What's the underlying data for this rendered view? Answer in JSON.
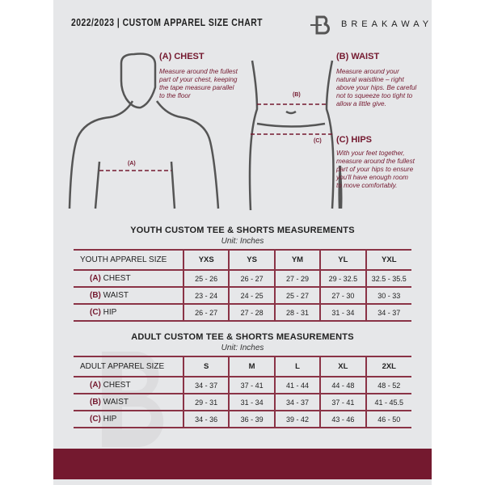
{
  "header": {
    "title": "2022/2023 | CUSTOM APPAREL SIZE CHART",
    "brand": "BREAKAWAY"
  },
  "guides": {
    "chest": {
      "title": "(A) CHEST",
      "text": "Measure around the fullest part of your chest, keeping the tape measure parallel to the floor",
      "marker": "(A)"
    },
    "waist": {
      "title": "(B) WAIST",
      "text": "Measure around your natural waistline – right above your hips. Be careful not to squeeze too tight to allow a little give.",
      "marker": "(B)"
    },
    "hips": {
      "title": "(C) HIPS",
      "text": "With your feet together, measure around the fullest part of your hips to ensure you'll have enough room to move comfortably.",
      "marker": "(C)"
    }
  },
  "colors": {
    "accent": "#74192f",
    "background": "#e6e7e9"
  },
  "youth": {
    "title": "YOUTH CUSTOM TEE & SHORTS MEASUREMENTS",
    "unit": "Unit: Inches",
    "header": "YOUTH APPAREL SIZE",
    "sizes": [
      "YXS",
      "YS",
      "YM",
      "YL",
      "YXL"
    ],
    "rows": [
      {
        "letter": "(A)",
        "label": "CHEST",
        "values": [
          "25 - 26",
          "26 - 27",
          "27 - 29",
          "29 - 32.5",
          "32.5 - 35.5"
        ]
      },
      {
        "letter": "(B)",
        "label": "WAIST",
        "values": [
          "23 - 24",
          "24 - 25",
          "25 - 27",
          "27 - 30",
          "30 - 33"
        ]
      },
      {
        "letter": "(C)",
        "label": "HIP",
        "values": [
          "26 - 27",
          "27 - 28",
          "28 - 31",
          "31 - 34",
          "34 - 37"
        ]
      }
    ]
  },
  "adult": {
    "title": "ADULT CUSTOM TEE & SHORTS MEASUREMENTS",
    "unit": "Unit: Inches",
    "header": "ADULT APPAREL SIZE",
    "sizes": [
      "S",
      "M",
      "L",
      "XL",
      "2XL"
    ],
    "rows": [
      {
        "letter": "(A)",
        "label": "CHEST",
        "values": [
          "34 - 37",
          "37 - 41",
          "41 - 44",
          "44 - 48",
          "48 - 52"
        ]
      },
      {
        "letter": "(B)",
        "label": "WAIST",
        "values": [
          "29 - 31",
          "31 - 34",
          "34 - 37",
          "37 - 41",
          "41 - 45.5"
        ]
      },
      {
        "letter": "(C)",
        "label": "HIP",
        "values": [
          "34 - 36",
          "36 - 39",
          "39 - 42",
          "43 - 46",
          "46 - 50"
        ]
      }
    ]
  }
}
